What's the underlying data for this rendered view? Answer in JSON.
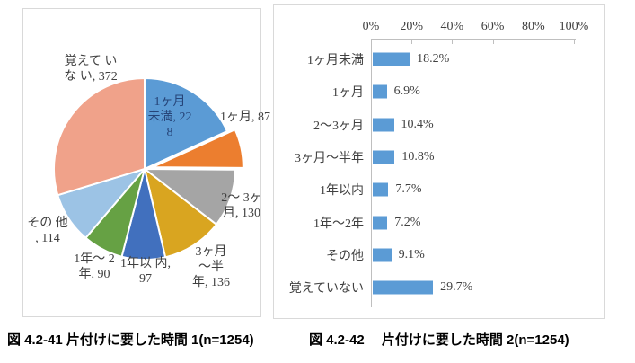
{
  "figure": {
    "captions": [
      {
        "text": "図 4.2-41 片付けに要した時間 1(n=1254)"
      },
      {
        "text": "図 4.2-42　 片付けに要した時間 2(n=1254)"
      }
    ]
  },
  "chart_data": [
    {
      "type": "pie",
      "title": "片付けに要した時間 1",
      "n": 1254,
      "categories": [
        "1ヶ月未満",
        "1ヶ月",
        "2〜3ヶ月",
        "3ヶ月〜半年",
        "1年以内",
        "1年〜2年",
        "その他",
        "覚えていない"
      ],
      "values": [
        228,
        87,
        130,
        136,
        97,
        90,
        114,
        372
      ],
      "labels": [
        "1ヶ月 未満, 228",
        "1ヶ月, 87",
        "2〜 3ヶ月, 130",
        "3ヶ月 〜半 年, 136",
        "1年以 内, 97",
        "1年〜 2年, 90",
        "その 他 , 114",
        "覚えて いな い, 372"
      ],
      "colors": [
        "#5b9bd5",
        "#ec7e2f",
        "#a5a5a5",
        "#d9a520",
        "#4170be",
        "#66a144",
        "#9cc3e5",
        "#f0a28a"
      ],
      "start_angle": 0,
      "exploded_index": 1,
      "label_color": "#404040",
      "inside_label_color": "#264478"
    },
    {
      "type": "bar",
      "orientation": "horizontal",
      "title": "片付けに要した時間 2",
      "n": 1254,
      "categories": [
        "1ヶ月未満",
        "1ヶ月",
        "2〜3ヶ月",
        "3ヶ月〜半年",
        "1年以内",
        "1年〜2年",
        "その他",
        "覚えていない"
      ],
      "values": [
        18.2,
        6.9,
        10.4,
        10.8,
        7.7,
        7.2,
        9.1,
        29.7
      ],
      "value_labels": [
        "18.2%",
        "6.9%",
        "10.4%",
        "10.8%",
        "7.7%",
        "7.2%",
        "9.1%",
        "29.7%"
      ],
      "axis_ticks": [
        "0%",
        "20%",
        "40%",
        "60%",
        "80%",
        "100%"
      ],
      "xlim": [
        0,
        100
      ],
      "grid": false,
      "legend": false,
      "bar_color": "#5b9bd5",
      "axis_color": "#bfbfbf"
    }
  ]
}
